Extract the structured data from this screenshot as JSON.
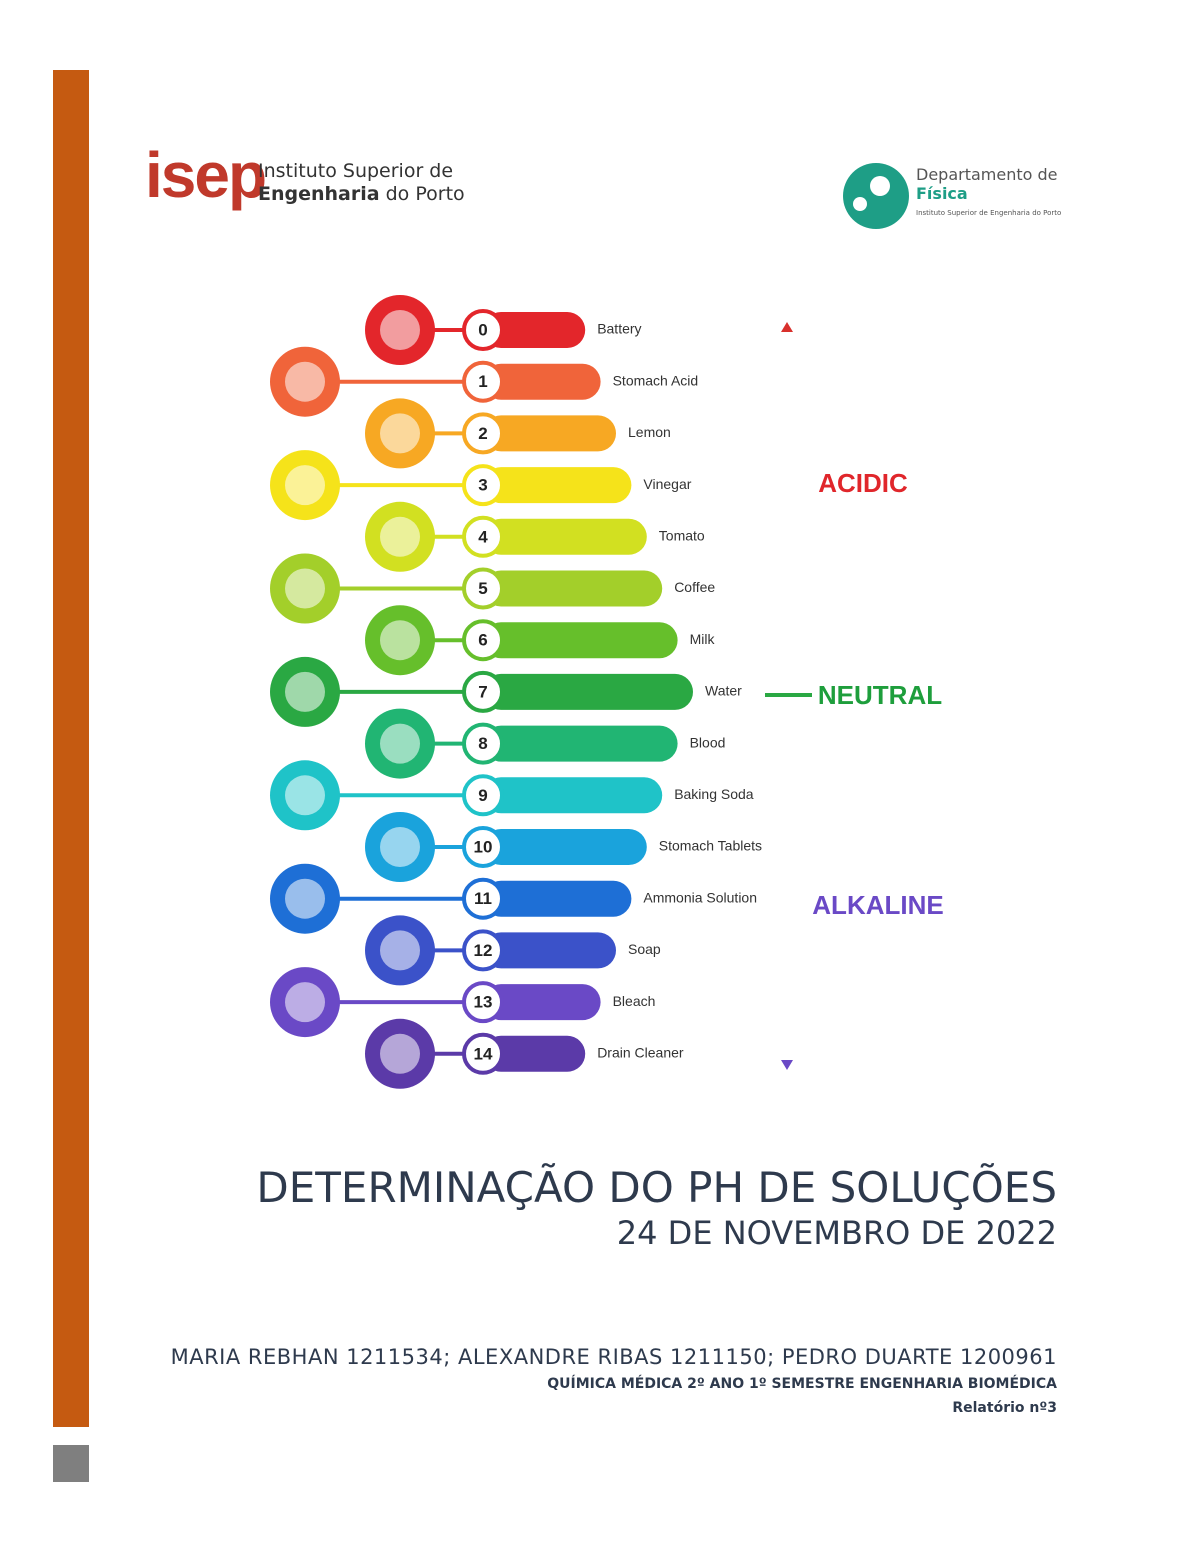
{
  "header": {
    "isep_logo": {
      "mark": "isep",
      "line1": "Instituto Superior de",
      "line2_bold": "Engenharia",
      "line2_rest": "do Porto"
    },
    "dept_logo": {
      "line1": "Departamento de",
      "line2": "Física",
      "line3": "Instituto Superior de Engenharia do Porto"
    }
  },
  "ph_scale": {
    "items": [
      {
        "ph": 0,
        "label": "Battery"
      },
      {
        "ph": 1,
        "label": "Stomach Acid"
      },
      {
        "ph": 2,
        "label": "Lemon"
      },
      {
        "ph": 3,
        "label": "Vinegar"
      },
      {
        "ph": 4,
        "label": "Tomato"
      },
      {
        "ph": 5,
        "label": "Coffee"
      },
      {
        "ph": 6,
        "label": "Milk"
      },
      {
        "ph": 7,
        "label": "Water"
      },
      {
        "ph": 8,
        "label": "Blood"
      },
      {
        "ph": 9,
        "label": "Baking Soda"
      },
      {
        "ph": 10,
        "label": "Stomach Tablets"
      },
      {
        "ph": 11,
        "label": "Ammonia  Solution"
      },
      {
        "ph": 12,
        "label": "Soap"
      },
      {
        "ph": 13,
        "label": "Bleach"
      },
      {
        "ph": 14,
        "label": "Drain Cleaner"
      }
    ],
    "acidic": "ACIDIC",
    "neutral": "NEUTRAL",
    "alkaline": "ALKALINE"
  },
  "title": "DETERMINAÇÃO DO PH DE SOLUÇÕES",
  "date": "24 DE NOVEMBRO DE 2022",
  "authors": "MARIA REBHAN 1211534; ALEXANDRE RIBAS 1211150; PEDRO DUARTE 1200961",
  "course": "QUÍMICA MÉDICA 2º ANO 1º SEMESTRE ENGENHARIA BIOMÉDICA",
  "report": "Relatório nº3"
}
